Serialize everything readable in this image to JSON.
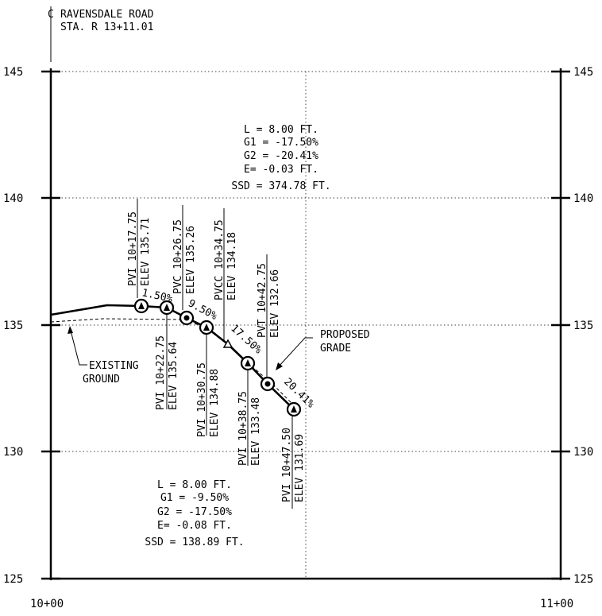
{
  "title": {
    "line1": "RAVENSDALE ROAD",
    "line2": "STA. R 13+11.01",
    "centerline_symbol": "C"
  },
  "axes": {
    "y_ticks": [
      "145",
      "140",
      "135",
      "130",
      "125"
    ],
    "x_ticks": [
      "10+00",
      "11+00"
    ],
    "y_range": [
      125,
      145
    ],
    "x_range": [
      1000,
      1100
    ]
  },
  "curve_top": {
    "l": "L =  8.00 FT.",
    "g1": "G1 = -17.50%",
    "g2": "G2 = -20.41%",
    "e": "E= -0.03 FT.",
    "ssd": "SSD = 374.78 FT."
  },
  "curve_bottom": {
    "l": "L =  8.00 FT.",
    "g1": "G1 = -9.50%",
    "g2": "G2 = -17.50%",
    "e": "E= -0.08 FT.",
    "ssd": "SSD = 138.89 FT."
  },
  "grades": {
    "g1": "1.50%",
    "g2": "9.50%",
    "g3": "17.50%",
    "g4": "20.41%"
  },
  "points": {
    "p1_sta": "PVI 10+17.75",
    "p1_elev": "ELEV 135.71",
    "p2_sta": "PVI 10+22.75",
    "p2_elev": "ELEV 135.64",
    "p3_sta": "PVC 10+26.75",
    "p3_elev": "ELEV 135.26",
    "p4_sta": "PVI 10+30.75",
    "p4_elev": "ELEV 134.88",
    "p5_sta": "PVCC 10+34.75",
    "p5_elev": "ELEV 134.18",
    "p6_sta": "PVI 10+38.75",
    "p6_elev": "ELEV 133.48",
    "p7_sta": "PVT 10+42.75",
    "p7_elev": "ELEV 132.66",
    "p8_sta": "PVI 10+47.50",
    "p8_elev": "ELEV 131.69"
  },
  "callouts": {
    "existing_1": "EXISTING",
    "existing_2": "GROUND",
    "proposed_1": "PROPOSED",
    "proposed_2": "GRADE"
  }
}
